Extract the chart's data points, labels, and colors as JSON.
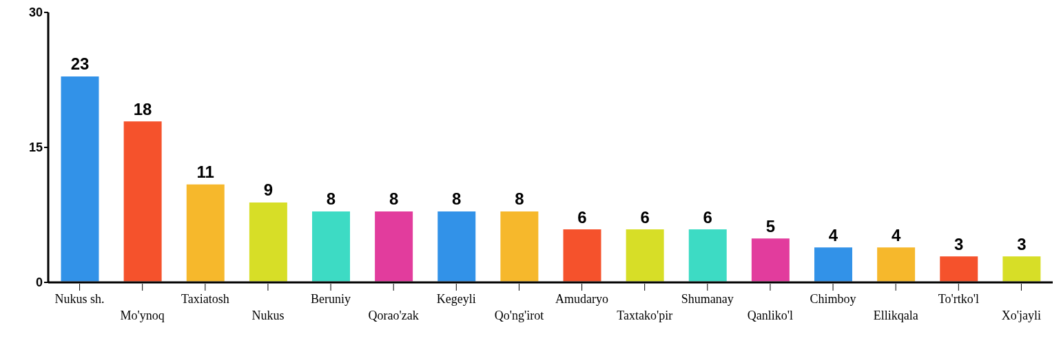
{
  "chart_data": {
    "type": "bar",
    "categories": [
      "Nukus sh.",
      "Mo'ynoq",
      "Taxiatosh",
      "Nukus",
      "Beruniy",
      "Qorao'zak",
      "Kegeyli",
      "Qo'ng'irot",
      "Amudaryo",
      "Taxtako'pir",
      "Shumanay",
      "Qanliko'l",
      "Chimboy",
      "Ellikqala",
      "To'rtko'l",
      "Xo'jayli"
    ],
    "values": [
      23,
      18,
      11,
      9,
      8,
      8,
      8,
      8,
      6,
      6,
      6,
      5,
      4,
      4,
      3,
      3
    ],
    "colors": [
      "#3292e8",
      "#f5522c",
      "#f6b82c",
      "#d7de27",
      "#3ddbc4",
      "#e23c9d",
      "#3292e8",
      "#f6b82c",
      "#f5522c",
      "#d7de27",
      "#3ddbc4",
      "#e23c9d",
      "#3292e8",
      "#f6b82c",
      "#f5522c",
      "#d7de27"
    ],
    "ylim": [
      0,
      30
    ],
    "yticks": [
      0,
      15,
      30
    ],
    "data_labels": true
  }
}
